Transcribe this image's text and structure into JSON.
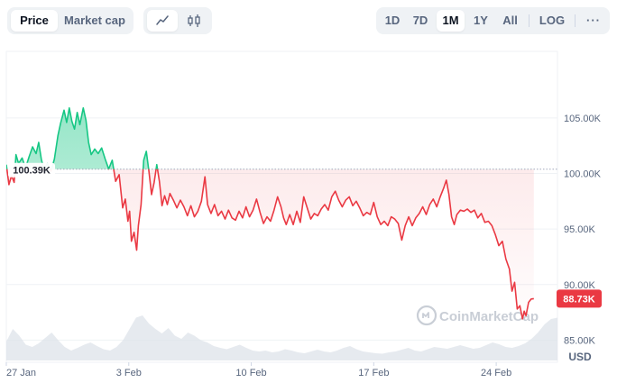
{
  "toolbar": {
    "metric_tabs": [
      "Price",
      "Market cap"
    ],
    "active_metric": "Price",
    "chart_type_icons": [
      "line-chart-icon",
      "candlestick-icon"
    ],
    "active_chart_type": "line-chart-icon",
    "ranges": [
      "1D",
      "7D",
      "1M",
      "1Y",
      "All"
    ],
    "active_range": "1M",
    "log_label": "LOG",
    "more_label": "···"
  },
  "colors": {
    "up": "#16c784",
    "down": "#ea3943",
    "up_fill": "#16c784",
    "down_fill": "#ea3943",
    "volume_fill": "#dde3ea",
    "badge": "#ea3943"
  },
  "watermark": {
    "text": "CoinMarketCap"
  },
  "baseline_label": "100.39K",
  "current_price_label": "88.73K",
  "chart_data": {
    "type": "area",
    "currency_label": "USD",
    "baseline": 100390,
    "current": 88730,
    "xlim": [
      0,
      31.5
    ],
    "ylim": [
      83000,
      111000
    ],
    "y_ticks": [
      {
        "value": 85000,
        "label": "85.00K"
      },
      {
        "value": 90000,
        "label": "90.00K"
      },
      {
        "value": 95000,
        "label": "95.00K"
      },
      {
        "value": 100000,
        "label": "100.00K"
      },
      {
        "value": 105000,
        "label": "105.00K"
      }
    ],
    "x_ticks": [
      {
        "value": 0,
        "label": "27 Jan"
      },
      {
        "value": 7,
        "label": "3 Feb"
      },
      {
        "value": 14,
        "label": "10 Feb"
      },
      {
        "value": 21,
        "label": "17 Feb"
      },
      {
        "value": 28,
        "label": "24 Feb"
      }
    ],
    "x_units": "days since 27 Jan",
    "price_series": {
      "name": "Price",
      "points": [
        [
          0.0,
          100800
        ],
        [
          0.15,
          99000
        ],
        [
          0.3,
          99800
        ],
        [
          0.45,
          99200
        ],
        [
          0.55,
          101700
        ],
        [
          0.7,
          100900
        ],
        [
          0.9,
          101400
        ],
        [
          1.1,
          100500
        ],
        [
          1.3,
          101500
        ],
        [
          1.5,
          102400
        ],
        [
          1.7,
          101800
        ],
        [
          1.85,
          102800
        ],
        [
          2.0,
          101300
        ],
        [
          2.15,
          100300
        ],
        [
          2.35,
          100900
        ],
        [
          2.55,
          100200
        ],
        [
          2.75,
          101300
        ],
        [
          2.95,
          103400
        ],
        [
          3.1,
          104500
        ],
        [
          3.3,
          105700
        ],
        [
          3.45,
          104600
        ],
        [
          3.6,
          105900
        ],
        [
          3.75,
          104700
        ],
        [
          3.9,
          104000
        ],
        [
          4.05,
          105500
        ],
        [
          4.2,
          104400
        ],
        [
          4.4,
          105900
        ],
        [
          4.55,
          104800
        ],
        [
          4.7,
          102800
        ],
        [
          4.85,
          101700
        ],
        [
          5.05,
          102200
        ],
        [
          5.25,
          101800
        ],
        [
          5.45,
          102300
        ],
        [
          5.65,
          101300
        ],
        [
          5.85,
          100400
        ],
        [
          6.05,
          101200
        ],
        [
          6.25,
          99300
        ],
        [
          6.45,
          99900
        ],
        [
          6.65,
          96900
        ],
        [
          6.8,
          97700
        ],
        [
          6.95,
          95700
        ],
        [
          7.05,
          96600
        ],
        [
          7.15,
          93900
        ],
        [
          7.3,
          94700
        ],
        [
          7.45,
          93100
        ],
        [
          7.55,
          95300
        ],
        [
          7.7,
          97200
        ],
        [
          7.85,
          101200
        ],
        [
          8.0,
          102000
        ],
        [
          8.15,
          100200
        ],
        [
          8.3,
          98100
        ],
        [
          8.45,
          99200
        ],
        [
          8.6,
          100800
        ],
        [
          8.75,
          99300
        ],
        [
          8.9,
          97100
        ],
        [
          9.05,
          98000
        ],
        [
          9.2,
          97200
        ],
        [
          9.35,
          98200
        ],
        [
          9.55,
          97600
        ],
        [
          9.75,
          96900
        ],
        [
          9.95,
          97600
        ],
        [
          10.15,
          97000
        ],
        [
          10.35,
          96200
        ],
        [
          10.55,
          97100
        ],
        [
          10.75,
          96100
        ],
        [
          10.95,
          96600
        ],
        [
          11.15,
          97500
        ],
        [
          11.35,
          99700
        ],
        [
          11.5,
          97200
        ],
        [
          11.7,
          96400
        ],
        [
          11.9,
          97200
        ],
        [
          12.1,
          96200
        ],
        [
          12.3,
          96600
        ],
        [
          12.5,
          95900
        ],
        [
          12.7,
          96700
        ],
        [
          12.9,
          96000
        ],
        [
          13.1,
          95800
        ],
        [
          13.3,
          96600
        ],
        [
          13.5,
          96000
        ],
        [
          13.7,
          97000
        ],
        [
          13.9,
          96100
        ],
        [
          14.1,
          96700
        ],
        [
          14.3,
          97700
        ],
        [
          14.5,
          96500
        ],
        [
          14.7,
          95500
        ],
        [
          14.9,
          96100
        ],
        [
          15.1,
          95700
        ],
        [
          15.3,
          96700
        ],
        [
          15.5,
          97900
        ],
        [
          15.7,
          97000
        ],
        [
          15.85,
          96000
        ],
        [
          16.0,
          95400
        ],
        [
          16.2,
          96300
        ],
        [
          16.4,
          95400
        ],
        [
          16.6,
          96600
        ],
        [
          16.8,
          95600
        ],
        [
          17.0,
          97900
        ],
        [
          17.2,
          96900
        ],
        [
          17.4,
          95900
        ],
        [
          17.6,
          96400
        ],
        [
          17.8,
          96200
        ],
        [
          18.0,
          96800
        ],
        [
          18.2,
          97200
        ],
        [
          18.4,
          96700
        ],
        [
          18.6,
          97900
        ],
        [
          18.8,
          98400
        ],
        [
          19.0,
          97600
        ],
        [
          19.2,
          97000
        ],
        [
          19.4,
          97600
        ],
        [
          19.6,
          97900
        ],
        [
          19.8,
          97100
        ],
        [
          20.0,
          97500
        ],
        [
          20.2,
          96900
        ],
        [
          20.4,
          96200
        ],
        [
          20.6,
          96500
        ],
        [
          20.8,
          96300
        ],
        [
          21.0,
          97400
        ],
        [
          21.2,
          96100
        ],
        [
          21.4,
          95400
        ],
        [
          21.6,
          95700
        ],
        [
          21.8,
          95300
        ],
        [
          22.0,
          96100
        ],
        [
          22.2,
          95900
        ],
        [
          22.4,
          95500
        ],
        [
          22.6,
          94000
        ],
        [
          22.8,
          95300
        ],
        [
          23.0,
          96100
        ],
        [
          23.2,
          95300
        ],
        [
          23.4,
          96000
        ],
        [
          23.6,
          96400
        ],
        [
          23.8,
          97000
        ],
        [
          24.0,
          96300
        ],
        [
          24.2,
          97200
        ],
        [
          24.4,
          97700
        ],
        [
          24.6,
          97000
        ],
        [
          24.8,
          97900
        ],
        [
          25.0,
          98700
        ],
        [
          25.15,
          99400
        ],
        [
          25.3,
          98100
        ],
        [
          25.45,
          96100
        ],
        [
          25.6,
          95400
        ],
        [
          25.75,
          96300
        ],
        [
          25.95,
          96700
        ],
        [
          26.15,
          96600
        ],
        [
          26.35,
          96800
        ],
        [
          26.55,
          96500
        ],
        [
          26.75,
          96700
        ],
        [
          26.95,
          96000
        ],
        [
          27.15,
          96400
        ],
        [
          27.35,
          95600
        ],
        [
          27.55,
          95700
        ],
        [
          27.75,
          95300
        ],
        [
          27.95,
          94500
        ],
        [
          28.15,
          93500
        ],
        [
          28.35,
          93900
        ],
        [
          28.55,
          92300
        ],
        [
          28.75,
          91400
        ],
        [
          28.9,
          89400
        ],
        [
          29.05,
          90200
        ],
        [
          29.2,
          87800
        ],
        [
          29.35,
          88100
        ],
        [
          29.5,
          86900
        ],
        [
          29.6,
          87600
        ],
        [
          29.7,
          87200
        ],
        [
          29.85,
          88400
        ],
        [
          30.0,
          88700
        ],
        [
          30.15,
          88730
        ]
      ]
    },
    "volume_series": {
      "name": "Volume",
      "values": [
        0.42,
        0.7,
        0.55,
        0.35,
        0.3,
        0.38,
        0.5,
        0.62,
        0.45,
        0.3,
        0.22,
        0.28,
        0.35,
        0.4,
        0.32,
        0.25,
        0.22,
        0.3,
        0.45,
        0.7,
        0.95,
        1.0,
        0.82,
        0.7,
        0.6,
        0.72,
        0.55,
        0.48,
        0.62,
        0.55,
        0.45,
        0.4,
        0.32,
        0.28,
        0.25,
        0.3,
        0.35,
        0.28,
        0.22,
        0.2,
        0.22,
        0.18,
        0.2,
        0.25,
        0.22,
        0.18,
        0.16,
        0.2,
        0.24,
        0.2,
        0.18,
        0.22,
        0.28,
        0.32,
        0.25,
        0.2,
        0.18,
        0.16,
        0.15,
        0.18,
        0.2,
        0.24,
        0.28,
        0.22,
        0.2,
        0.25,
        0.3,
        0.28,
        0.26,
        0.3,
        0.34,
        0.3,
        0.26,
        0.28,
        0.34,
        0.4,
        0.36,
        0.3,
        0.28,
        0.32,
        0.38,
        0.48,
        0.62,
        0.8,
        0.92,
        0.95
      ]
    }
  }
}
